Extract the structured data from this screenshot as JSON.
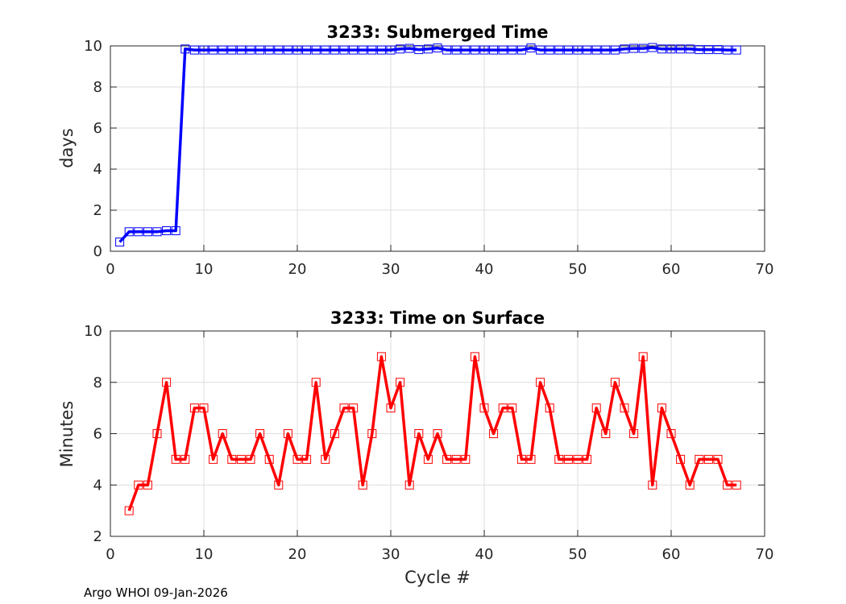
{
  "footer": "Argo WHOI 09-Jan-2026",
  "colors": {
    "submerged": "#0000ff",
    "surface": "#ff0000",
    "axis": "#262626",
    "grid": "#dedede"
  },
  "chart_data": [
    {
      "type": "line",
      "title": "3233: Submerged Time",
      "xlabel": "",
      "ylabel": "days",
      "xlim": [
        0,
        70
      ],
      "ylim": [
        0,
        10
      ],
      "xticks": [
        0,
        10,
        20,
        30,
        40,
        50,
        60,
        70
      ],
      "yticks": [
        0,
        2,
        4,
        6,
        8,
        10
      ],
      "grid": true,
      "series": [
        {
          "name": "Submerged Time",
          "color": "#0000ff",
          "marker": "square",
          "x": [
            1,
            2,
            3,
            4,
            5,
            6,
            7,
            8,
            9,
            10,
            11,
            12,
            13,
            14,
            15,
            16,
            17,
            18,
            19,
            20,
            21,
            22,
            23,
            24,
            25,
            26,
            27,
            28,
            29,
            30,
            31,
            32,
            33,
            34,
            35,
            36,
            37,
            38,
            39,
            40,
            41,
            42,
            43,
            44,
            45,
            46,
            47,
            48,
            49,
            50,
            51,
            52,
            53,
            54,
            55,
            56,
            57,
            58,
            59,
            60,
            61,
            62,
            63,
            64,
            65,
            66,
            67
          ],
          "y": [
            0.45,
            0.95,
            0.95,
            0.95,
            0.95,
            1.0,
            1.0,
            9.85,
            9.8,
            9.8,
            9.8,
            9.8,
            9.8,
            9.8,
            9.8,
            9.8,
            9.8,
            9.8,
            9.8,
            9.8,
            9.8,
            9.8,
            9.8,
            9.8,
            9.8,
            9.8,
            9.8,
            9.8,
            9.8,
            9.8,
            9.85,
            9.88,
            9.82,
            9.85,
            9.9,
            9.8,
            9.8,
            9.8,
            9.8,
            9.8,
            9.8,
            9.8,
            9.8,
            9.8,
            9.9,
            9.8,
            9.8,
            9.8,
            9.8,
            9.8,
            9.8,
            9.8,
            9.8,
            9.8,
            9.85,
            9.88,
            9.88,
            9.92,
            9.85,
            9.85,
            9.85,
            9.85,
            9.82,
            9.82,
            9.82,
            9.8,
            9.8
          ]
        }
      ]
    },
    {
      "type": "line",
      "title": "3233: Time on Surface",
      "xlabel": "Cycle #",
      "ylabel": "Minutes",
      "xlim": [
        0,
        70
      ],
      "ylim": [
        2,
        10
      ],
      "xticks": [
        0,
        10,
        20,
        30,
        40,
        50,
        60,
        70
      ],
      "yticks": [
        2,
        4,
        6,
        8,
        10
      ],
      "grid": true,
      "series": [
        {
          "name": "Time on Surface",
          "color": "#ff0000",
          "marker": "square",
          "x": [
            2,
            3,
            4,
            5,
            6,
            7,
            8,
            9,
            10,
            11,
            12,
            13,
            14,
            15,
            16,
            17,
            18,
            19,
            20,
            21,
            22,
            23,
            24,
            25,
            26,
            27,
            28,
            29,
            30,
            31,
            32,
            33,
            34,
            35,
            36,
            37,
            38,
            39,
            40,
            41,
            42,
            43,
            44,
            45,
            46,
            47,
            48,
            49,
            50,
            51,
            52,
            53,
            54,
            55,
            56,
            57,
            58,
            59,
            60,
            61,
            62,
            63,
            64,
            65,
            66,
            67
          ],
          "y": [
            3,
            4,
            4,
            6,
            8,
            5,
            5,
            7,
            7,
            5,
            6,
            5,
            5,
            5,
            6,
            5,
            4,
            6,
            5,
            5,
            8,
            5,
            6,
            7,
            7,
            4,
            6,
            9,
            7,
            8,
            4,
            6,
            5,
            6,
            5,
            5,
            5,
            9,
            7,
            6,
            7,
            7,
            5,
            5,
            8,
            7,
            5,
            5,
            5,
            5,
            7,
            6,
            8,
            7,
            6,
            9,
            4,
            7,
            6,
            5,
            4,
            5,
            5,
            5,
            4,
            4
          ]
        }
      ]
    }
  ]
}
